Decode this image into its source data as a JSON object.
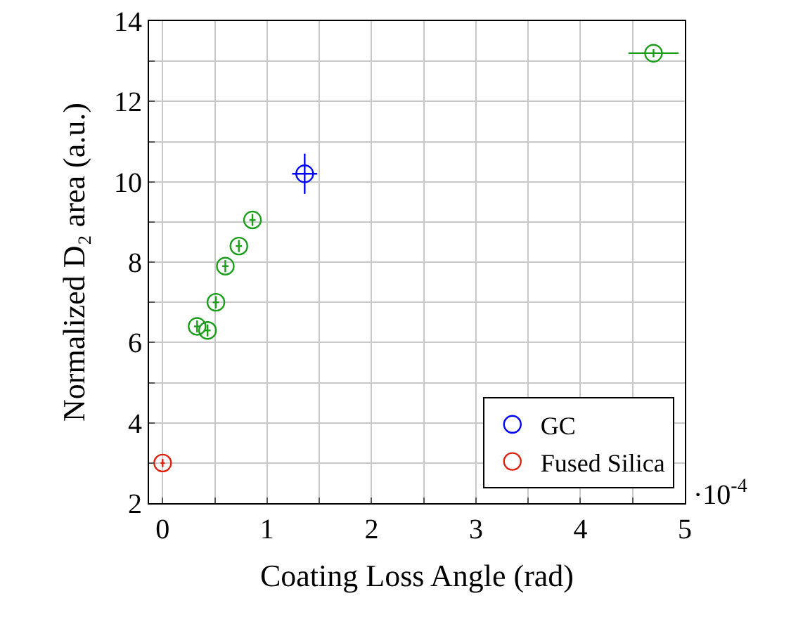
{
  "chart_data": {
    "type": "scatter",
    "xlabel": "Coating Loss Angle (rad)",
    "ylabel": "Normalized D₂ area (a.u.)",
    "series": [
      {
        "color": "#1a9e1a",
        "x": [
          0.33,
          0.43,
          0.51,
          0.6,
          0.73,
          0.86,
          4.7
        ],
        "values": [
          6.4,
          6.3,
          7.0,
          7.9,
          8.4,
          9.05,
          13.2
        ],
        "errors": [
          0.15,
          0.15,
          0.15,
          0.15,
          0.15,
          0.15,
          0.1
        ],
        "xerrors": [
          0.03,
          0.03,
          0.03,
          0.03,
          0.03,
          0.03,
          0.24
        ]
      },
      {
        "name": "GC",
        "color": "#0000ff",
        "x": [
          1.36
        ],
        "values": [
          10.2
        ],
        "errors": [
          0.5
        ],
        "xerrors": [
          0.12
        ]
      },
      {
        "name": "Fused Silica",
        "color": "#e02010",
        "x": [
          0
        ],
        "values": [
          3.0
        ],
        "errors": [
          0.1
        ],
        "xerrors": [
          0.02
        ]
      }
    ],
    "xlim": [
      -0.13,
      5
    ],
    "ylim": [
      2,
      14
    ],
    "xticks": [
      0,
      {
        "value": 0.5,
        "label": null
      },
      1,
      {
        "value": 1.5,
        "label": null
      },
      2,
      {
        "value": 2.5,
        "label": null
      },
      3,
      {
        "value": 3.5,
        "label": null
      },
      4,
      {
        "value": 4.5,
        "label": null
      },
      5
    ],
    "yticks": [
      2,
      {
        "value": 3,
        "label": null
      },
      4,
      {
        "value": 5,
        "label": null
      },
      6,
      {
        "value": 7,
        "label": null
      },
      8,
      {
        "value": 9,
        "label": null
      },
      10,
      {
        "value": 11,
        "label": null
      },
      12,
      {
        "value": 13,
        "label": null
      },
      14
    ],
    "annotations": [
      "·10$^{-4}$"
    ],
    "grid": true,
    "legend": "bottom right",
    "marker": "circle"
  }
}
